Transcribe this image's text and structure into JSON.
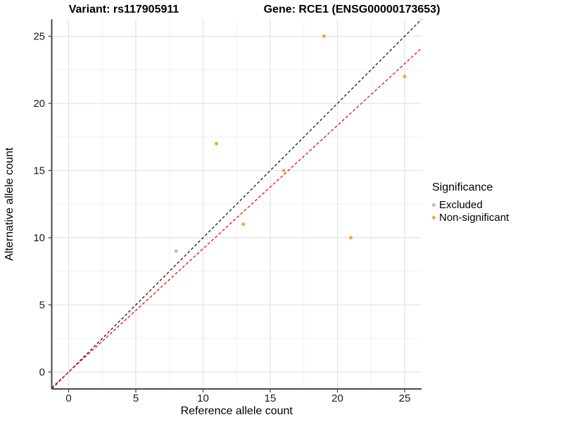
{
  "titles": {
    "variant": "Variant: rs117905911",
    "gene": "Gene: RCE1 (ENSG00000173653)"
  },
  "axes": {
    "x": {
      "label": "Reference allele count",
      "ticks": [
        0,
        5,
        10,
        15,
        20,
        25
      ],
      "minor_ticks": [
        2.5,
        7.5,
        12.5,
        17.5,
        22.5
      ],
      "range": [
        -1.25,
        26.25
      ]
    },
    "y": {
      "label": "Alternative allele count",
      "ticks": [
        0,
        5,
        10,
        15,
        20,
        25
      ],
      "minor_ticks": [
        2.5,
        7.5,
        12.5,
        17.5,
        22.5
      ],
      "range": [
        -1.25,
        26.25
      ]
    }
  },
  "legend": {
    "title": "Significance",
    "items": [
      {
        "label": "Excluded",
        "color": "#BEBEBE"
      },
      {
        "label": "Non-significant",
        "color": "#FAA43C"
      }
    ]
  },
  "chart_data": {
    "type": "scatter",
    "title": "Variant: rs117905911   Gene: RCE1 (ENSG00000173653)",
    "xlabel": "Reference allele count",
    "ylabel": "Alternative allele count",
    "xlim": [
      -1.25,
      26.25
    ],
    "ylim": [
      -1.25,
      26.25
    ],
    "grid": "on",
    "legend_position": "right",
    "series": [
      {
        "name": "Excluded",
        "color": "#BEBEBE",
        "points": [
          [
            8,
            9
          ]
        ]
      },
      {
        "name": "Non-significant",
        "color": "#FAA43C",
        "points": [
          [
            11,
            17
          ],
          [
            13,
            11
          ],
          [
            16,
            15
          ],
          [
            19,
            25
          ],
          [
            21,
            10
          ],
          [
            25,
            22
          ]
        ]
      }
    ],
    "lines": [
      {
        "name": "identity",
        "style": "dashed",
        "color": "#1A1A1A",
        "x1": -1.25,
        "y1": -1.25,
        "x2": 26.25,
        "y2": 26.25
      },
      {
        "name": "expected-ratio",
        "style": "dashed",
        "color": "#FF0000",
        "x1": -1.25,
        "y1": -1.15,
        "x2": 26.25,
        "y2": 24.1
      }
    ]
  },
  "colors": {
    "grid_major": "#E3E3E3",
    "grid_minor": "#F1F1F1",
    "axis": "#4A4A4A",
    "tick_text": "#1A1A1A"
  }
}
